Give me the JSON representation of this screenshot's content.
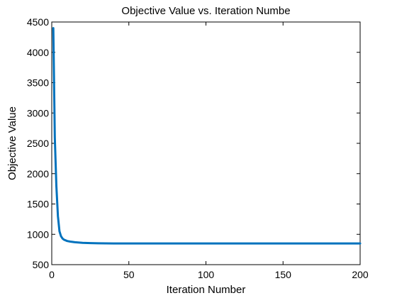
{
  "chart_data": {
    "type": "line",
    "title": "Objective Value vs. Iteration Numbe",
    "xlabel": "Iteration Number",
    "ylabel": "Objective Value",
    "xlim": [
      0,
      200
    ],
    "ylim": [
      500,
      4500
    ],
    "xticks": [
      0,
      50,
      100,
      150,
      200
    ],
    "yticks": [
      500,
      1000,
      1500,
      2000,
      2500,
      3000,
      3500,
      4000,
      4500
    ],
    "grid": false,
    "line_color": "#0072bd",
    "series": [
      {
        "x": [
          1,
          2,
          3,
          4,
          5,
          6,
          7,
          8,
          10,
          12,
          15,
          20,
          25,
          30,
          40,
          50,
          75,
          100,
          125,
          150,
          175,
          200
        ],
        "y": [
          4400,
          2600,
          1800,
          1300,
          1050,
          970,
          930,
          910,
          890,
          880,
          870,
          860,
          855,
          852,
          850,
          850,
          850,
          850,
          850,
          850,
          850,
          850
        ]
      }
    ]
  }
}
